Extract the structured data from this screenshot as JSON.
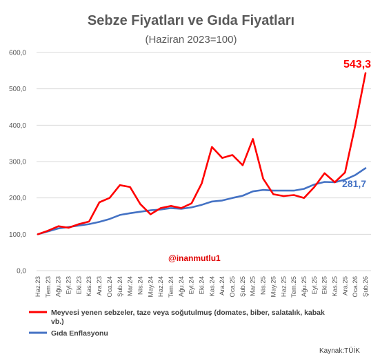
{
  "chart_data": {
    "type": "line",
    "title": "Sebze Fiyatları ve Gıda Fiyatları",
    "subtitle": "(Haziran 2023=100)",
    "xlabel": "",
    "ylabel": "",
    "ylim": [
      0,
      600
    ],
    "yticks": [
      "0,0",
      "100,0",
      "200,0",
      "300,0",
      "400,0",
      "500,0",
      "600,0"
    ],
    "grid": true,
    "legend_position": "bottom",
    "categories": [
      "Haz.23",
      "Tem.23",
      "Ağu.23",
      "Eyl.23",
      "Eki.23",
      "Kas.23",
      "Ara.23",
      "Oca.24",
      "Şub.24",
      "Mar.24",
      "Nis.24",
      "May.24",
      "Haz.24",
      "Tem.24",
      "Ağu.24",
      "Eyl.24",
      "Eki.24",
      "Kas.24",
      "Ara.24",
      "Oca.25",
      "Şub.25",
      "Mar.25",
      "Nis.25",
      "May.25",
      "Haz.25",
      "Tem.25",
      "Ağu.25",
      "Eyl.25",
      "Eki.25",
      "Kas.25",
      "Ara.25",
      "Oca.26",
      "Şub.26"
    ],
    "series": [
      {
        "name": "Meyvesi yenen sebzeler, taze veya soğutulmuş (domates, biber, salatalık, kabak vb.)",
        "color": "#ff0000",
        "values": [
          100,
          110,
          122,
          118,
          128,
          135,
          188,
          200,
          235,
          230,
          183,
          155,
          172,
          178,
          172,
          185,
          240,
          340,
          310,
          318,
          290,
          362,
          253,
          210,
          205,
          208,
          200,
          230,
          268,
          243,
          270,
          400,
          543.3
        ]
      },
      {
        "name": "Gıda Enflasyonu",
        "color": "#4472c4",
        "values": [
          100,
          108,
          116,
          120,
          124,
          128,
          134,
          142,
          153,
          158,
          162,
          166,
          168,
          172,
          170,
          174,
          181,
          190,
          193,
          200,
          206,
          218,
          222,
          220,
          220,
          220,
          225,
          237,
          244,
          243,
          250,
          263,
          281.7
        ]
      }
    ],
    "end_labels": {
      "red": "543,3",
      "blue": "281,7"
    },
    "annotation": "@inanmutlu1",
    "source": "Kaynak:TÜİK"
  }
}
